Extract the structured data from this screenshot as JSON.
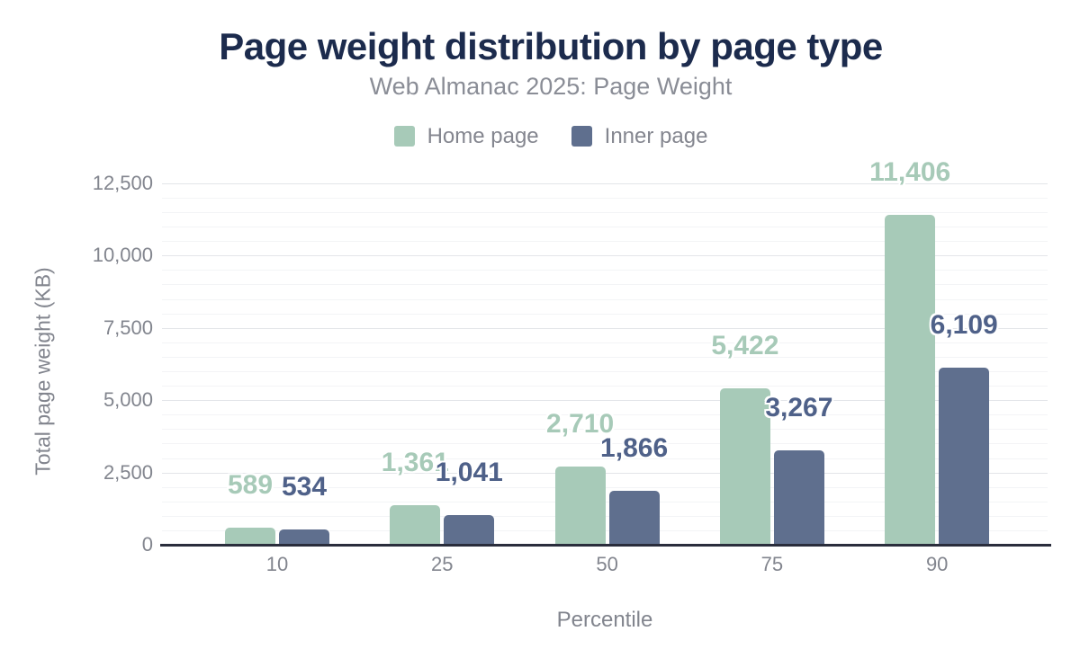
{
  "header": {
    "title": "Page weight distribution by page type",
    "subtitle": "Web Almanac 2025: Page Weight"
  },
  "chart_data": {
    "type": "bar",
    "title": "Page weight distribution by page type",
    "subtitle": "Web Almanac 2025: Page Weight",
    "categories": [
      "10",
      "25",
      "50",
      "75",
      "90"
    ],
    "series": [
      {
        "name": "Home page",
        "values": [
          589,
          1361,
          2710,
          5422,
          11406
        ],
        "value_labels": [
          "589",
          "1,361",
          "2,710",
          "5,422",
          "11,406"
        ],
        "color": "#a7cab8",
        "label_color": "#a7cab8"
      },
      {
        "name": "Inner page",
        "values": [
          534,
          1041,
          1866,
          3267,
          6109
        ],
        "value_labels": [
          "534",
          "1,041",
          "1,866",
          "3,267",
          "6,109"
        ],
        "color": "#5f6f8e",
        "label_color": "#4f6189"
      }
    ],
    "xlabel": "Percentile",
    "ylabel": "Total page weight (KB)",
    "ylim": [
      0,
      12500
    ],
    "yticks": [
      0,
      2500,
      5000,
      7500,
      10000,
      12500
    ],
    "ytick_labels": [
      "0",
      "2,500",
      "5,000",
      "7,500",
      "10,000",
      "12,500"
    ],
    "minor_tick_step": 500,
    "grid": "on",
    "legend_position": "top"
  },
  "colors": {
    "background": "#ffffff",
    "title_text": "#1c2b4d",
    "subtitle_text": "#8a8d96",
    "axis_text": "#82858e",
    "legend_text": "#84868f",
    "grid_major": "#e3e5e9",
    "grid_minor": "#f3f4f6",
    "x_axis_line": "#2a2d3c",
    "home_page_series": "#a7cab8",
    "inner_page_series": "#5f6f8e",
    "inner_page_label": "#4f6189"
  }
}
